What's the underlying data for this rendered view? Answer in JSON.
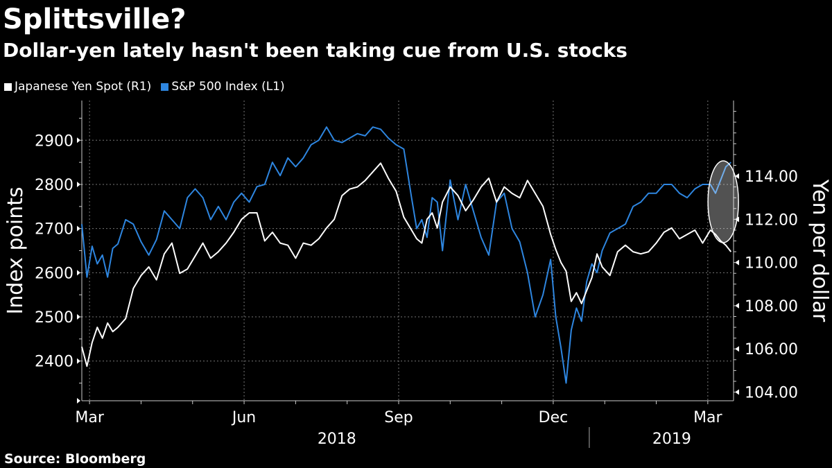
{
  "title": "Splittsville?",
  "subtitle": "Dollar-yen lately hasn't been taking cue from U.S. stocks",
  "source": "Source: Bloomberg",
  "legend": [
    {
      "label": "Japanese Yen Spot  (R1)",
      "color": "#ffffff"
    },
    {
      "label": "S&P 500 Index (L1)",
      "color": "#2e86e0"
    }
  ],
  "chart_data": {
    "type": "line",
    "title": "Splittsville?",
    "subtitle": "Dollar-yen lately hasn't been taking cue from U.S. stocks",
    "left_axis": {
      "label": "Index points",
      "range": [
        2310,
        2990
      ],
      "ticks": [
        2400,
        2500,
        2600,
        2700,
        2800,
        2900
      ]
    },
    "right_axis": {
      "label": "Yen per dollar",
      "range": [
        103.6,
        117.5
      ],
      "ticks": [
        "104.00",
        "106.00",
        "108.00",
        "110.00",
        "112.00",
        "114.00"
      ]
    },
    "x_axis": {
      "range_month_index": [
        -0.15,
        12.5
      ],
      "month_ticks": [
        {
          "label": "Mar",
          "pos": 0
        },
        {
          "label": "Jun",
          "pos": 3
        },
        {
          "label": "Sep",
          "pos": 6
        },
        {
          "label": "Dec",
          "pos": 9
        },
        {
          "label": "Mar",
          "pos": 12
        }
      ],
      "year_labels": [
        {
          "label": "2018",
          "pos": 4.8
        },
        {
          "label": "2019",
          "pos": 11.3
        }
      ],
      "year_divider_pos": 9.7
    },
    "grid": true,
    "series": [
      {
        "name": "S&P 500 Index (L1)",
        "axis": "left",
        "color": "#2e86e0",
        "x": [
          -0.15,
          -0.05,
          0.05,
          0.15,
          0.25,
          0.35,
          0.45,
          0.55,
          0.7,
          0.85,
          1.0,
          1.15,
          1.3,
          1.45,
          1.6,
          1.75,
          1.9,
          2.05,
          2.2,
          2.35,
          2.5,
          2.65,
          2.8,
          2.95,
          3.1,
          3.25,
          3.4,
          3.55,
          3.7,
          3.85,
          4.0,
          4.15,
          4.3,
          4.45,
          4.6,
          4.75,
          4.9,
          5.05,
          5.2,
          5.35,
          5.5,
          5.65,
          5.8,
          5.95,
          6.1,
          6.25,
          6.35,
          6.45,
          6.55,
          6.65,
          6.75,
          6.85,
          7.0,
          7.15,
          7.3,
          7.45,
          7.6,
          7.75,
          7.9,
          8.05,
          8.2,
          8.35,
          8.5,
          8.65,
          8.8,
          8.95,
          9.05,
          9.15,
          9.25,
          9.35,
          9.45,
          9.55,
          9.65,
          9.75,
          9.85,
          9.95,
          10.1,
          10.25,
          10.4,
          10.55,
          10.7,
          10.85,
          11.0,
          11.15,
          11.3,
          11.45,
          11.6,
          11.75,
          11.9,
          12.05,
          12.15,
          12.25,
          12.35,
          12.45
        ],
        "values": [
          2710,
          2590,
          2660,
          2620,
          2640,
          2590,
          2655,
          2665,
          2720,
          2710,
          2670,
          2640,
          2675,
          2740,
          2720,
          2700,
          2770,
          2790,
          2770,
          2720,
          2750,
          2720,
          2760,
          2780,
          2760,
          2795,
          2800,
          2850,
          2820,
          2860,
          2840,
          2860,
          2890,
          2900,
          2930,
          2900,
          2895,
          2905,
          2915,
          2910,
          2930,
          2925,
          2905,
          2890,
          2880,
          2770,
          2700,
          2720,
          2680,
          2770,
          2760,
          2650,
          2810,
          2720,
          2800,
          2740,
          2680,
          2640,
          2760,
          2780,
          2700,
          2670,
          2600,
          2500,
          2550,
          2630,
          2500,
          2430,
          2350,
          2470,
          2520,
          2490,
          2580,
          2620,
          2600,
          2650,
          2690,
          2700,
          2710,
          2750,
          2760,
          2780,
          2780,
          2800,
          2800,
          2780,
          2770,
          2790,
          2800,
          2800,
          2780,
          2810,
          2840,
          2850
        ]
      },
      {
        "name": "Japanese Yen Spot (R1)",
        "axis": "right",
        "color": "#ffffff",
        "x": [
          -0.15,
          -0.05,
          0.05,
          0.15,
          0.25,
          0.35,
          0.45,
          0.55,
          0.7,
          0.85,
          1.0,
          1.15,
          1.3,
          1.45,
          1.6,
          1.75,
          1.9,
          2.05,
          2.2,
          2.35,
          2.5,
          2.65,
          2.8,
          2.95,
          3.1,
          3.25,
          3.4,
          3.55,
          3.7,
          3.85,
          4.0,
          4.15,
          4.3,
          4.45,
          4.6,
          4.75,
          4.9,
          5.05,
          5.2,
          5.35,
          5.5,
          5.65,
          5.8,
          5.95,
          6.1,
          6.25,
          6.35,
          6.45,
          6.55,
          6.65,
          6.75,
          6.85,
          7.0,
          7.15,
          7.3,
          7.45,
          7.6,
          7.75,
          7.9,
          8.05,
          8.2,
          8.35,
          8.5,
          8.65,
          8.8,
          8.95,
          9.05,
          9.15,
          9.25,
          9.35,
          9.45,
          9.55,
          9.65,
          9.75,
          9.85,
          9.95,
          10.1,
          10.25,
          10.4,
          10.55,
          10.7,
          10.85,
          11.0,
          11.15,
          11.3,
          11.45,
          11.6,
          11.75,
          11.9,
          12.05,
          12.15,
          12.25,
          12.35,
          12.45
        ],
        "values": [
          106.1,
          105.2,
          106.3,
          107.0,
          106.5,
          107.2,
          106.8,
          107.0,
          107.4,
          108.8,
          109.4,
          109.8,
          109.2,
          110.4,
          110.9,
          109.5,
          109.7,
          110.3,
          110.9,
          110.2,
          110.5,
          110.9,
          111.4,
          112.0,
          112.3,
          112.3,
          111.0,
          111.4,
          110.9,
          110.8,
          110.2,
          110.9,
          110.8,
          111.1,
          111.6,
          112.0,
          113.1,
          113.4,
          113.5,
          113.8,
          114.2,
          114.6,
          113.9,
          113.3,
          112.1,
          111.5,
          111.1,
          110.9,
          112.0,
          112.3,
          111.6,
          112.8,
          113.5,
          113.1,
          112.4,
          112.9,
          113.5,
          113.9,
          112.8,
          113.5,
          113.2,
          113.0,
          113.8,
          113.2,
          112.6,
          111.3,
          110.6,
          110.0,
          109.6,
          108.2,
          108.6,
          108.1,
          108.7,
          109.3,
          110.4,
          109.8,
          109.4,
          110.5,
          110.8,
          110.5,
          110.4,
          110.5,
          110.9,
          111.4,
          111.6,
          111.1,
          111.3,
          111.5,
          110.9,
          111.5,
          111.3,
          111.0,
          110.8,
          110.5
        ]
      }
    ],
    "annotations": [
      {
        "type": "ellipse",
        "description": "highlight latest divergence"
      }
    ]
  }
}
